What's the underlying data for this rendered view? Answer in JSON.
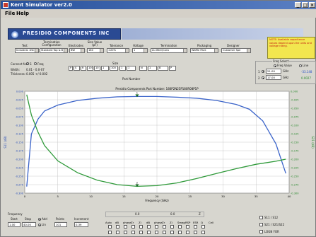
{
  "window": {
    "title": "Kent Simulator  ver2.0",
    "controls": [
      "_",
      "□",
      "×"
    ]
  },
  "menu": [
    "File",
    "Help"
  ],
  "banner": "PRESIDIO COMPONENTS INC",
  "note": "NOTE: Available capacitance values depend upon the units and voltage rating.",
  "header_labels": {
    "termination_config": "Termination Configuration",
    "electrodes": "Electrodes",
    "size_value": "Size Value (pF)",
    "tolerance": "Tolerance",
    "voltage": "Voltage",
    "termination": "Termination",
    "packaging": "Packaging",
    "designer": "Designer",
    "test": "Test"
  },
  "selects": {
    "test": "Industrial 1NC Cr",
    "termination_config": "Standard Top & B",
    "electrodes": "BW",
    "size_value": "180",
    "tolerance": "±20%",
    "voltage": "1",
    "termination": "Au Wire/Conv",
    "packaging": "Waffle Pack",
    "designer": "Customer Spe"
  },
  "connect": {
    "label": "Connect for:",
    "opt1": "S",
    "opt2": "Freq",
    "width_label": "Width:",
    "width_value": "0.01 - 0.0-07",
    "thick_label": "Thickness:",
    "thick_value": "0.005 +/-0.002"
  },
  "size_label": "Size",
  "part_number_label": "Part Number",
  "part_number": [
    "P",
    "S",
    "R",
    "100",
    "10",
    "1",
    "100",
    "1",
    "1",
    "N",
    "1",
    "B",
    "P"
  ],
  "freq_select": {
    "title": "Freq Select",
    "opt_freq": "Freq Value",
    "opt_line": "Line",
    "l1_label": "1",
    "l1_value": "51.00",
    "l1_unit": "GHz",
    "l1_readout": "-33.148",
    "l2_label": "2",
    "l2_value": "17.00",
    "l2_unit": "GHz",
    "l2_readout": "0.0027"
  },
  "chart_data": {
    "type": "line",
    "title": "Presidio Components Part Number: 180P2N25P180R08P1P",
    "xlabel": "Frequency (GHz)",
    "ylabel": "S11 (dB)",
    "y2label": "S21 (dB)",
    "xlim": [
      0,
      40
    ],
    "ylim": [
      -0.3,
      0.01
    ],
    "y2lim": [
      -0.3,
      0
    ],
    "x_ticks": [
      "0",
      "5",
      "10",
      "15",
      "20",
      "25",
      "30",
      "35",
      "40"
    ],
    "y_ticks": [
      "0.000",
      "-0.025",
      "-0.050",
      "-0.075",
      "-0.100",
      "-0.125",
      "-0.150",
      "-0.175",
      "-0.200",
      "-0.225",
      "-0.250",
      "-0.275",
      "-0.300"
    ],
    "y2_ticks": [
      "0.000",
      "-0.025",
      "-0.050",
      "-0.075",
      "-0.100",
      "-0.125",
      "-0.150",
      "-0.175",
      "-0.200",
      "-0.225",
      "-0.250",
      "-0.275",
      "-0.300"
    ],
    "grid": true,
    "series": [
      {
        "values": [
          [
            0.3,
            -0.28
          ],
          [
            1,
            -0.12
          ],
          [
            2,
            -0.075
          ],
          [
            3,
            -0.05
          ],
          [
            5,
            -0.032
          ],
          [
            8,
            -0.018
          ],
          [
            11,
            -0.011
          ],
          [
            14,
            -0.007
          ],
          [
            17,
            -0.006
          ],
          [
            20,
            -0.006
          ],
          [
            23,
            -0.008
          ],
          [
            26,
            -0.011
          ],
          [
            29,
            -0.018
          ],
          [
            32,
            -0.03
          ],
          [
            34,
            -0.045
          ],
          [
            36,
            -0.08
          ],
          [
            38,
            -0.15
          ],
          [
            39.5,
            -0.24
          ]
        ],
        "color": "#3a63c9"
      },
      {
        "values": [
          [
            0.3,
            -0.01
          ],
          [
            1,
            -0.07
          ],
          [
            2,
            -0.12
          ],
          [
            3,
            -0.16
          ],
          [
            5,
            -0.205
          ],
          [
            8,
            -0.24
          ],
          [
            11,
            -0.262
          ],
          [
            14,
            -0.275
          ],
          [
            17,
            -0.28
          ],
          [
            20,
            -0.278
          ],
          [
            23,
            -0.27
          ],
          [
            26,
            -0.257
          ],
          [
            29,
            -0.242
          ],
          [
            32,
            -0.228
          ],
          [
            35,
            -0.215
          ],
          [
            38,
            -0.206
          ],
          [
            39.5,
            -0.2
          ]
        ],
        "color": "#2f9a3a"
      }
    ],
    "markers": [
      {
        "label": "1",
        "x": 17,
        "y": -0.006
      },
      {
        "label": "2",
        "x": 17,
        "y": -0.28
      }
    ]
  },
  "bottom": {
    "freq_label": "Frequency",
    "start_label": "Start",
    "start_value": "1.00",
    "stop_label": "Stop",
    "stop_value": "40.00",
    "pts_label": "Points",
    "pts_value": "101",
    "inc_label": "Increment",
    "inc_value": "0.39",
    "add": "Add",
    "linear": "Lin",
    "log": "Log"
  },
  "scale": {
    "s_min": "0.0",
    "s_max": "0.0",
    "z_label": "Z"
  },
  "cols": [
    "Auto",
    "dB",
    "phase",
    "Zr",
    "Zi",
    "dB",
    "phase",
    "Zr",
    "Zi",
    "Smag",
    "RSP",
    "ESR",
    "Q",
    "Cell"
  ],
  "checks": [
    "S11 / S12",
    "S21 / S21/S22",
    "LOGN FOR"
  ]
}
